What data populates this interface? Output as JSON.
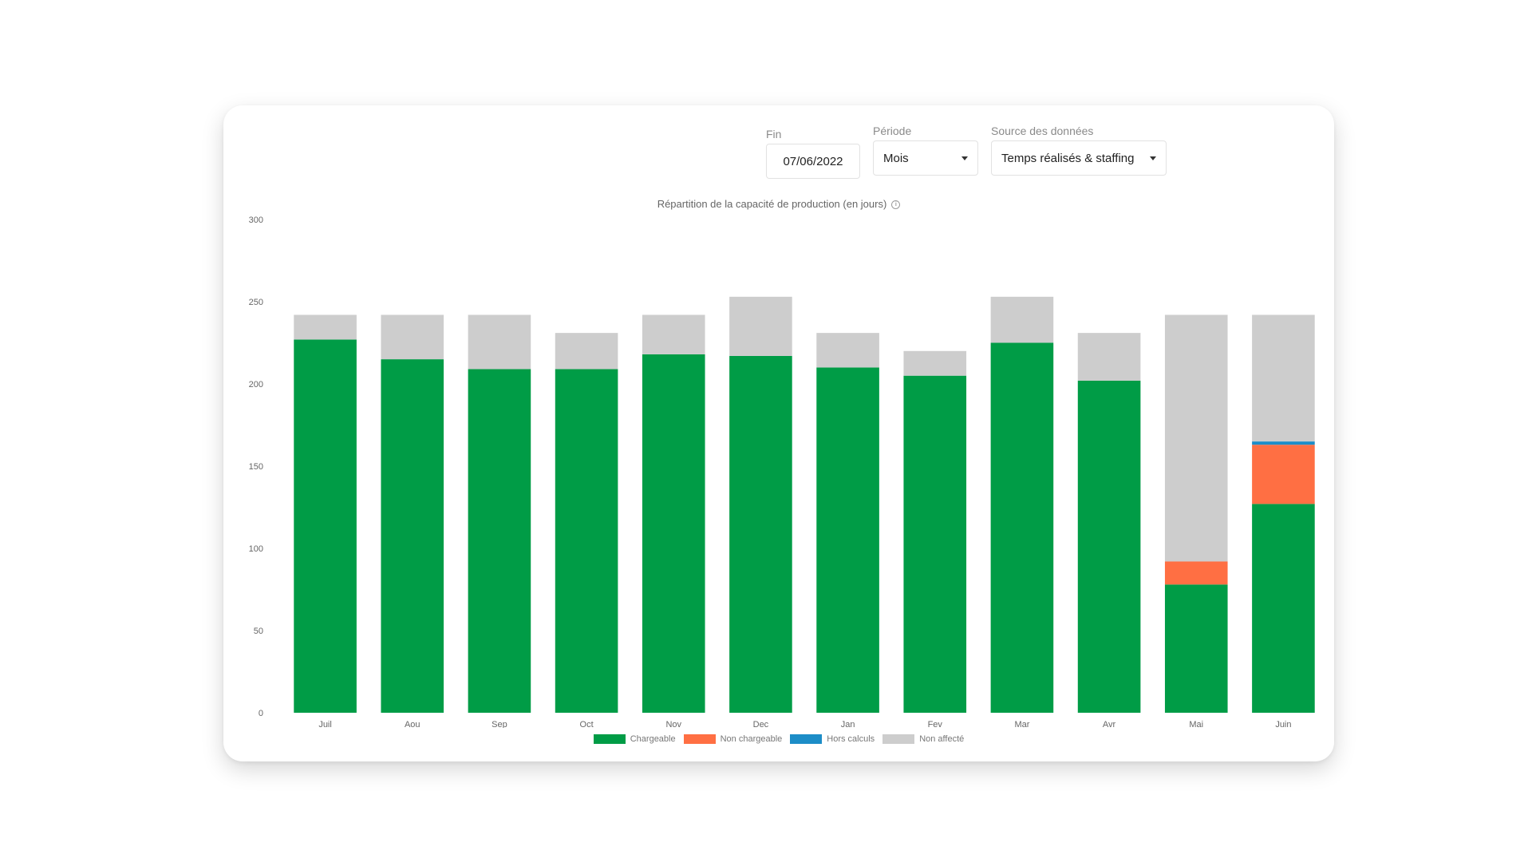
{
  "filters": {
    "end_label": "Fin",
    "end_value": "07/06/2022",
    "period_label": "Période",
    "period_value": "Mois",
    "source_label": "Source des données",
    "source_value": "Temps réalisés & staffing"
  },
  "colors": {
    "chargeable": "#009c46",
    "non_chargeable": "#ff6f43",
    "hors_calculs": "#1d8dc7",
    "non_affecte": "#cdcdcd",
    "axis_text": "#666666"
  },
  "chart_data": {
    "type": "bar",
    "stacked": true,
    "title": "Répartition de la capacité de production (en jours)",
    "xlabel": "",
    "ylabel": "",
    "ylim": [
      0,
      300
    ],
    "yticks": [
      0,
      50,
      100,
      150,
      200,
      250,
      300
    ],
    "grid": false,
    "legend_position": "bottom",
    "categories": [
      "Juil",
      "Aou",
      "Sep",
      "Oct",
      "Nov",
      "Dec",
      "Jan",
      "Fev",
      "Mar",
      "Avr",
      "Mai",
      "Juin"
    ],
    "series": [
      {
        "name": "Chargeable",
        "key": "chargeable",
        "values": [
          227,
          215,
          209,
          209,
          218,
          217,
          210,
          205,
          225,
          202,
          78,
          127
        ]
      },
      {
        "name": "Non chargeable",
        "key": "non_chargeable",
        "values": [
          0,
          0,
          0,
          0,
          0,
          0,
          0,
          0,
          0,
          0,
          14,
          36
        ]
      },
      {
        "name": "Hors calculs",
        "key": "hors_calculs",
        "values": [
          0,
          0,
          0,
          0,
          0,
          0,
          0,
          0,
          0,
          0,
          0,
          2
        ]
      },
      {
        "name": "Non affecté",
        "key": "non_affecte",
        "values": [
          15,
          27,
          33,
          22,
          24,
          36,
          21,
          15,
          28,
          29,
          150,
          77
        ]
      }
    ]
  }
}
